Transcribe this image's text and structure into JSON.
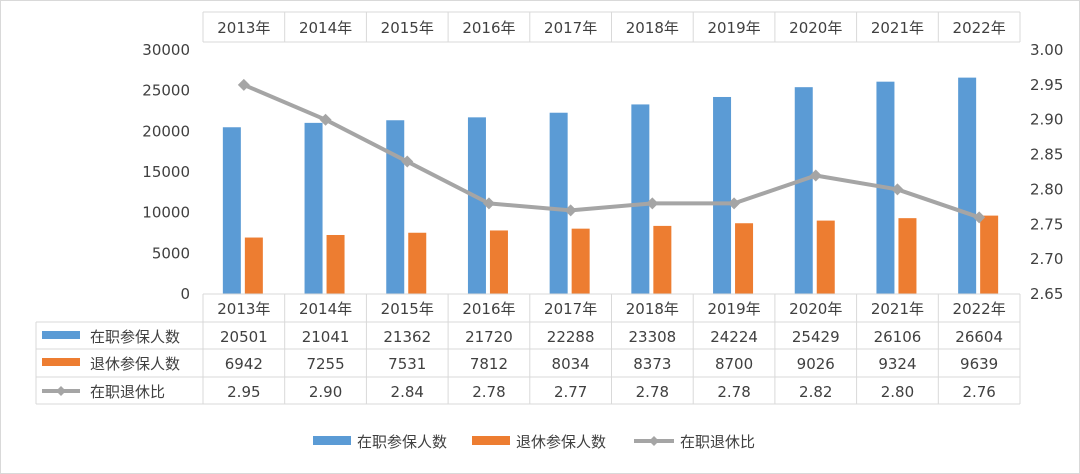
{
  "chart_data": {
    "type": "bar+line",
    "categories": [
      "2013年",
      "2014年",
      "2015年",
      "2016年",
      "2017年",
      "2018年",
      "2019年",
      "2020年",
      "2021年",
      "2022年"
    ],
    "series": [
      {
        "name": "在职参保人数",
        "type": "bar",
        "axis": "left",
        "color": "#5B9BD5",
        "values": [
          20501,
          21041,
          21362,
          21720,
          22288,
          23308,
          24224,
          25429,
          26106,
          26604
        ]
      },
      {
        "name": "退休参保人数",
        "type": "bar",
        "axis": "left",
        "color": "#ED7D31",
        "values": [
          6942,
          7255,
          7531,
          7812,
          8034,
          8373,
          8700,
          9026,
          9324,
          9639
        ]
      },
      {
        "name": "在职退休比",
        "type": "line",
        "axis": "right",
        "color": "#A5A5A5",
        "values": [
          2.95,
          2.9,
          2.84,
          2.78,
          2.77,
          2.78,
          2.78,
          2.82,
          2.8,
          2.76
        ],
        "labels": [
          "2.95",
          "2.90",
          "2.84",
          "2.78",
          "2.77",
          "2.78",
          "2.78",
          "2.82",
          "2.80",
          "2.76"
        ]
      }
    ],
    "y_left": {
      "range": [
        0,
        30000
      ],
      "ticks": [
        "0",
        "5000",
        "10000",
        "15000",
        "20000",
        "25000",
        "30000"
      ]
    },
    "y_right": {
      "range": [
        2.65,
        3.0
      ],
      "ticks": [
        "2.65",
        "2.70",
        "2.75",
        "2.80",
        "2.85",
        "2.90",
        "2.95",
        "3.00"
      ]
    },
    "data_table": true,
    "legend_position": "bottom",
    "grid": false
  }
}
